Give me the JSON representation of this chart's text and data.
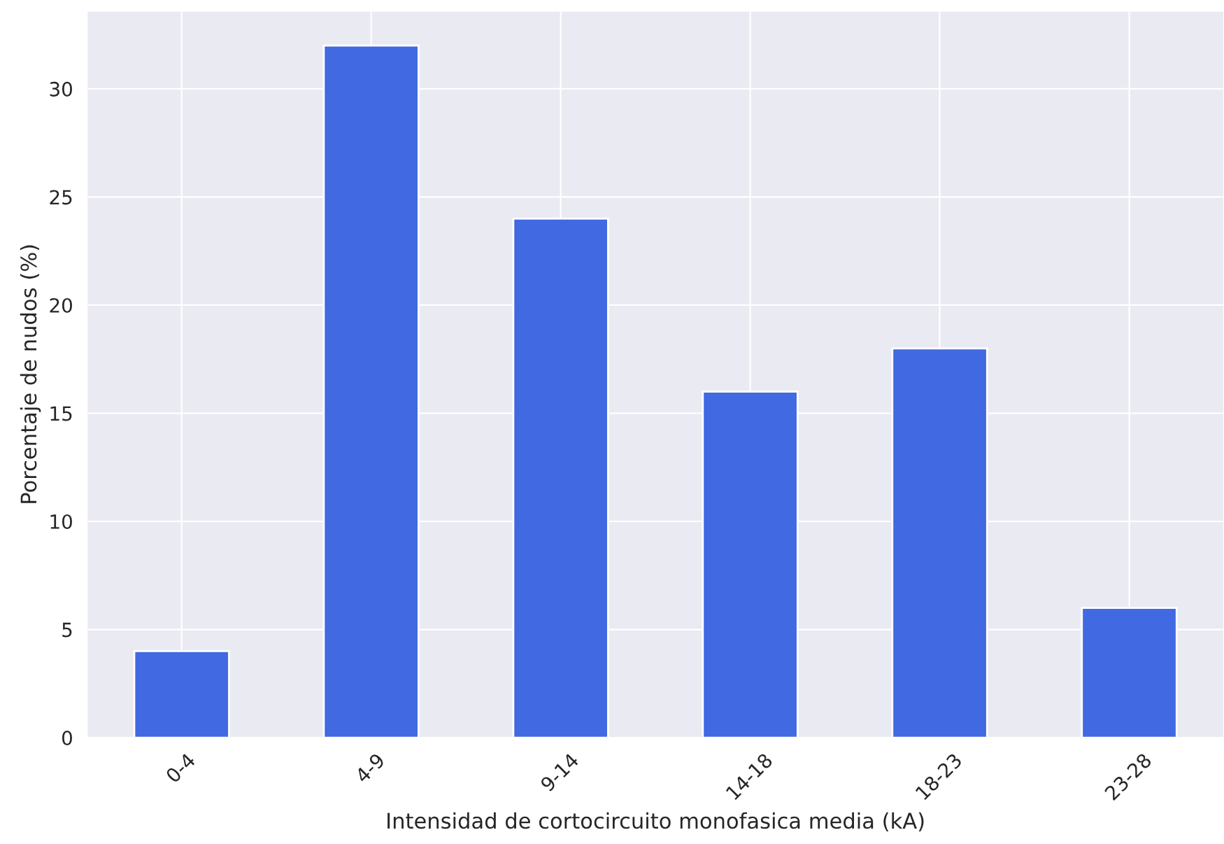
{
  "chart_data": {
    "type": "bar",
    "xlabel": "Intensidad de cortocircuito monofasica media (kA)",
    "ylabel": "Porcentaje de nudos (%)",
    "categories": [
      "0-4",
      "4-9",
      "9-14",
      "14-18",
      "18-23",
      "23-28"
    ],
    "values": [
      4,
      32,
      24,
      16,
      18,
      6
    ],
    "color": "#4169e1",
    "ylim": [
      0,
      33.6
    ],
    "yticks": [
      0,
      5,
      10,
      15,
      20,
      25,
      30
    ],
    "grid": true
  }
}
